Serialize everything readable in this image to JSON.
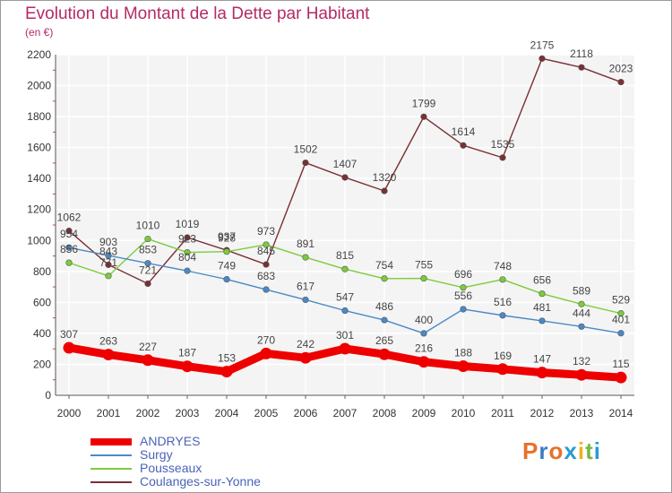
{
  "title": "Evolution du Montant de la Dette par Habitant",
  "subtitle": "(en €)",
  "logo": {
    "letters": [
      "P",
      "r",
      "o",
      "x",
      "i",
      "t",
      "i"
    ],
    "colors": [
      "#e8702a",
      "#3b7dc4",
      "#e8702a",
      "#2b9bd6",
      "#f0b020",
      "#7ab648",
      "#2b9bd6"
    ]
  },
  "chart_data": {
    "type": "line",
    "x": [
      "2000",
      "2001",
      "2002",
      "2003",
      "2004",
      "2005",
      "2006",
      "2007",
      "2008",
      "2009",
      "2010",
      "2011",
      "2012",
      "2013",
      "2014"
    ],
    "ylim": [
      0,
      2200
    ],
    "yticks": [
      0,
      200,
      400,
      600,
      800,
      1000,
      1200,
      1400,
      1600,
      1800,
      2000,
      2200
    ],
    "grid": true,
    "legend_position": "bottom-left",
    "series": [
      {
        "name": "ANDRYES",
        "color": "#ee0000",
        "values": [
          307,
          263,
          227,
          187,
          153,
          270,
          242,
          301,
          265,
          216,
          188,
          169,
          147,
          132,
          115
        ]
      },
      {
        "name": "Surgy",
        "color": "#4a89c8",
        "values": [
          954,
          903,
          853,
          804,
          749,
          683,
          617,
          547,
          486,
          400,
          556,
          516,
          481,
          444,
          401
        ]
      },
      {
        "name": "Pousseaux",
        "color": "#7ccc3a",
        "values": [
          856,
          771,
          1010,
          923,
          928,
          973,
          891,
          815,
          754,
          755,
          696,
          748,
          656,
          589,
          529
        ]
      },
      {
        "name": "Coulanges-sur-Yonne",
        "color": "#7a2f34",
        "values": [
          1062,
          843,
          721,
          1019,
          937,
          845,
          1502,
          1407,
          1320,
          1799,
          1614,
          1535,
          2175,
          2118,
          2023
        ]
      }
    ]
  }
}
